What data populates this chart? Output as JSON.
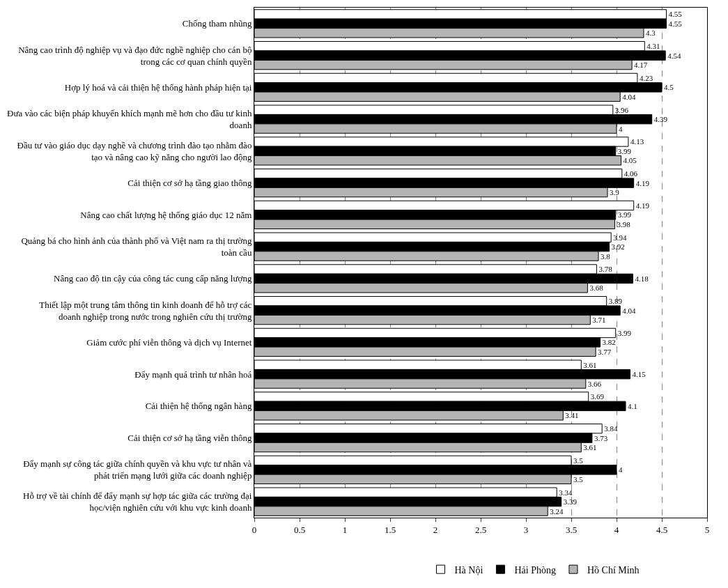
{
  "chart_data": {
    "type": "bar",
    "orientation": "horizontal",
    "categories": [
      "Chống tham nhũng",
      "Nâng cao trình độ nghiệp vụ và đạo đức nghề nghiệp cho cán bộ trong các cơ quan chính quyền",
      "Hợp lý hoá và cải thiện hệ thống hành pháp hiện tại",
      "Đưa vào các biện pháp khuyến khích mạnh mẽ hơn cho đầu tư kinh doanh",
      "Đầu tư vào giáo dục dạy nghề và chương trình đào tạo nhằm đào tạo và nâng cao kỹ năng cho người lao động",
      "Cải thiện cơ sở hạ tầng giao thông",
      "Nâng cao chất lượng hệ thống giáo dục 12 năm",
      "Quảng bá cho hình ảnh của thành phố và Việt nam ra thị trường toàn cầu",
      "Nâng cao độ tin cậy của công tác cung cấp năng lượng",
      "Thiết lập một trung tâm thông tin kinh doanh để hỗ trợ các doanh nghiệp trong nước trong nghiên cứu thị trường",
      "Giảm cước phí viễn thông và dịch vụ Internet",
      "Đẩy mạnh quá trình tư nhân hoá",
      "Cải thiện hệ thống ngân hàng",
      "Cải thiện cơ sở hạ tầng viễn thông",
      "Đẩy mạnh sự công tác giữa chính quyền và khu vực tư nhân và phát triển mạng lưới giữa các doanh nghiệp",
      "Hỗ trợ về tài chính để đẩy mạnh sự hợp tác giữa các trường đại học/viện nghiên cứu với khu vực kinh doanh"
    ],
    "series": [
      {
        "name": "Hà Nội",
        "color": "#ffffff",
        "values": [
          4.55,
          4.31,
          4.23,
          3.96,
          4.13,
          4.06,
          4.19,
          3.94,
          3.78,
          3.89,
          3.99,
          3.61,
          3.69,
          3.84,
          3.5,
          3.34
        ]
      },
      {
        "name": "Hải Phòng",
        "color": "#000000",
        "values": [
          4.55,
          4.54,
          4.5,
          4.39,
          3.99,
          4.19,
          3.99,
          3.92,
          4.18,
          4.04,
          3.82,
          4.15,
          4.1,
          3.73,
          4,
          3.39
        ]
      },
      {
        "name": "Hồ Chí Minh",
        "color": "#b4b4b4",
        "values": [
          4.3,
          4.17,
          4.04,
          4,
          4.05,
          3.9,
          3.98,
          3.8,
          3.68,
          3.71,
          3.77,
          3.66,
          3.41,
          3.61,
          3.5,
          3.24
        ]
      }
    ],
    "xlim": [
      0,
      5
    ],
    "xticks": [
      0,
      0.5,
      1,
      1.5,
      2,
      2.5,
      3,
      3.5,
      4,
      4.5,
      5
    ],
    "grid": "x",
    "legend": "bottom",
    "data_labels": true
  }
}
